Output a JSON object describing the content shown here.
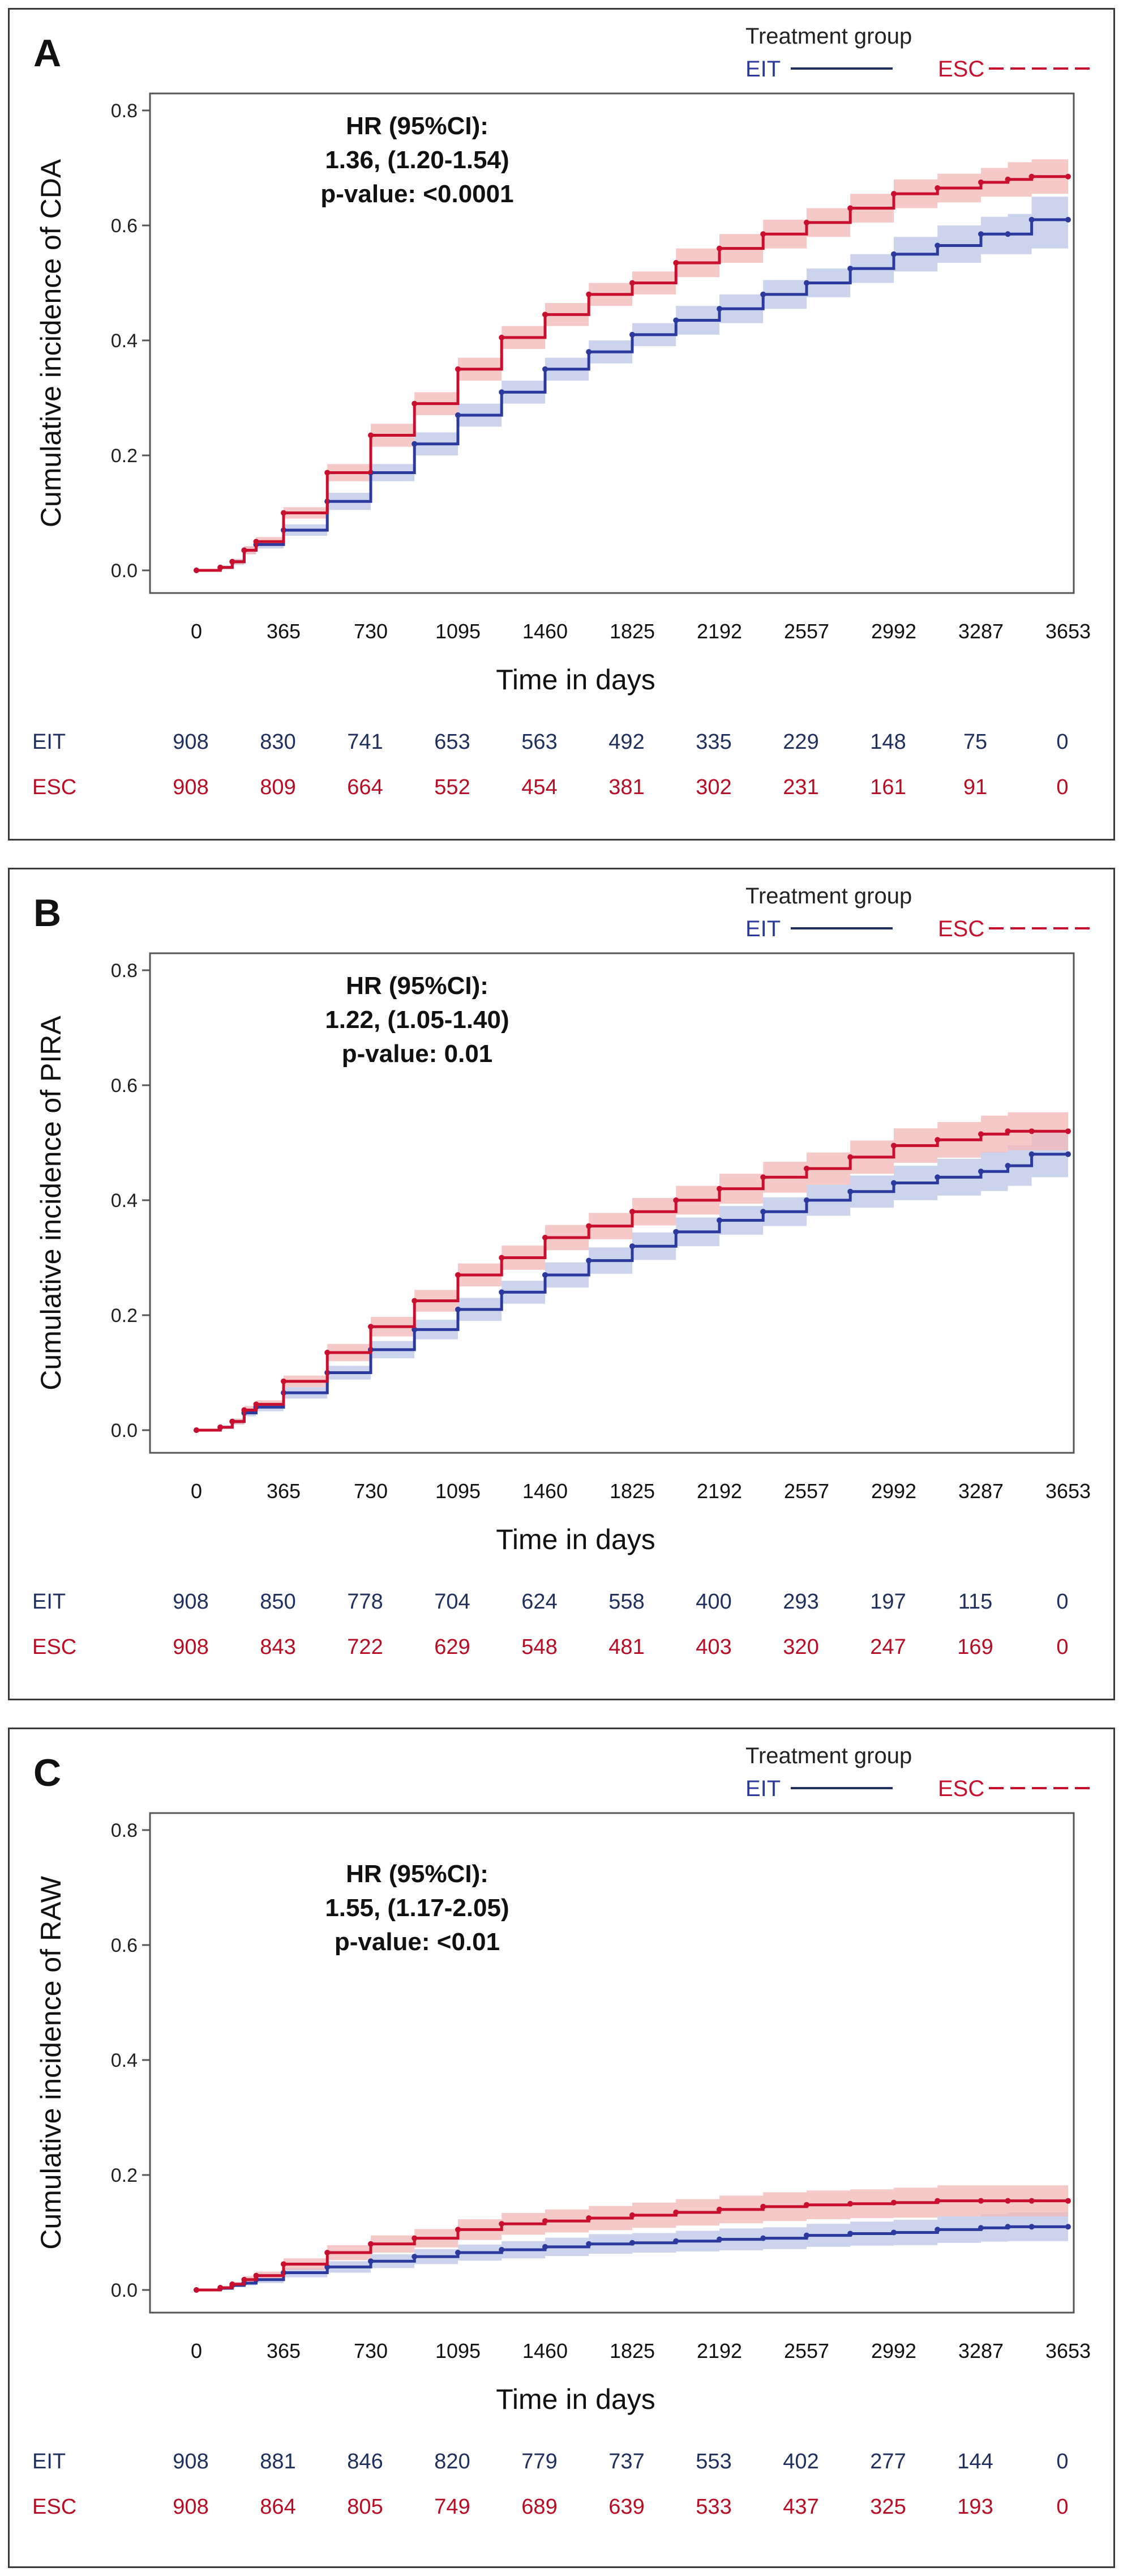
{
  "colors": {
    "eit": "#2b3a9c",
    "eit_band": "#b9c6e6",
    "esc": "#c8102e",
    "esc_band": "#f3b7b7",
    "eit_text": "#1f2f5e",
    "esc_text": "#b80c25"
  },
  "x_ticks": [
    "0",
    "365",
    "730",
    "1095",
    "1460",
    "1825",
    "2192",
    "2557",
    "2992",
    "3287",
    "3653"
  ],
  "y_ticks": [
    "0.0",
    "0.2",
    "0.4",
    "0.6",
    "0.8"
  ],
  "chart_data": [
    {
      "type": "line",
      "panel_letter": "A",
      "legend_title": "Treatment group",
      "ylabel": "Cumulative incidence of CDA",
      "xlabel": "Time in days",
      "ylim": [
        0,
        0.8
      ],
      "xlim": [
        0,
        3653
      ],
      "annotation": [
        "HR (95%CI):",
        "1.36, (1.20-1.54)",
        "p-value: <0.0001"
      ],
      "x": [
        0,
        100,
        150,
        200,
        250,
        365,
        548,
        730,
        913,
        1095,
        1278,
        1460,
        1643,
        1825,
        2009,
        2192,
        2375,
        2557,
        2775,
        2992,
        3140,
        3287,
        3400,
        3500,
        3653
      ],
      "series": [
        {
          "name": "EIT",
          "values": [
            0,
            0.005,
            0.015,
            0.035,
            0.045,
            0.07,
            0.12,
            0.17,
            0.22,
            0.27,
            0.31,
            0.35,
            0.38,
            0.41,
            0.435,
            0.455,
            0.48,
            0.5,
            0.525,
            0.55,
            0.565,
            0.585,
            0.585,
            0.61,
            0.61
          ],
          "ci_low": [
            0,
            0.003,
            0.01,
            0.028,
            0.038,
            0.06,
            0.105,
            0.155,
            0.2,
            0.25,
            0.29,
            0.33,
            0.36,
            0.39,
            0.41,
            0.43,
            0.455,
            0.475,
            0.5,
            0.52,
            0.535,
            0.55,
            0.55,
            0.56,
            0.56
          ],
          "ci_high": [
            0,
            0.008,
            0.02,
            0.042,
            0.052,
            0.08,
            0.135,
            0.185,
            0.24,
            0.29,
            0.33,
            0.37,
            0.4,
            0.43,
            0.46,
            0.48,
            0.505,
            0.525,
            0.55,
            0.58,
            0.6,
            0.615,
            0.62,
            0.65,
            0.65
          ]
        },
        {
          "name": "ESC",
          "values": [
            0,
            0.005,
            0.015,
            0.035,
            0.05,
            0.1,
            0.17,
            0.235,
            0.29,
            0.35,
            0.405,
            0.445,
            0.48,
            0.5,
            0.535,
            0.56,
            0.585,
            0.605,
            0.63,
            0.655,
            0.665,
            0.675,
            0.68,
            0.685,
            0.685
          ],
          "ci_low": [
            0,
            0.003,
            0.01,
            0.028,
            0.042,
            0.09,
            0.155,
            0.215,
            0.27,
            0.33,
            0.385,
            0.425,
            0.46,
            0.48,
            0.51,
            0.535,
            0.56,
            0.58,
            0.605,
            0.63,
            0.64,
            0.65,
            0.65,
            0.655,
            0.655
          ],
          "ci_high": [
            0,
            0.008,
            0.02,
            0.042,
            0.058,
            0.11,
            0.185,
            0.255,
            0.31,
            0.37,
            0.425,
            0.465,
            0.5,
            0.52,
            0.56,
            0.585,
            0.61,
            0.63,
            0.655,
            0.68,
            0.69,
            0.7,
            0.71,
            0.715,
            0.715
          ]
        }
      ],
      "at_risk": [
        {
          "name": "EIT",
          "values": [
            "908",
            "830",
            "741",
            "653",
            "563",
            "492",
            "335",
            "229",
            "148",
            "75",
            "0"
          ]
        },
        {
          "name": "ESC",
          "values": [
            "908",
            "809",
            "664",
            "552",
            "454",
            "381",
            "302",
            "231",
            "161",
            "91",
            "0"
          ]
        }
      ]
    },
    {
      "type": "line",
      "panel_letter": "B",
      "legend_title": "Treatment group",
      "ylabel": "Cumulative incidence of PIRA",
      "xlabel": "Time in days",
      "ylim": [
        0,
        0.8
      ],
      "xlim": [
        0,
        3653
      ],
      "annotation": [
        "HR (95%CI):",
        "1.22, (1.05-1.40)",
        "p-value: 0.01"
      ],
      "x": [
        0,
        100,
        150,
        200,
        250,
        365,
        548,
        730,
        913,
        1095,
        1278,
        1460,
        1643,
        1825,
        2009,
        2192,
        2375,
        2557,
        2775,
        2992,
        3140,
        3287,
        3400,
        3500,
        3653
      ],
      "series": [
        {
          "name": "EIT",
          "values": [
            0,
            0.005,
            0.015,
            0.03,
            0.04,
            0.065,
            0.1,
            0.14,
            0.175,
            0.21,
            0.24,
            0.27,
            0.295,
            0.32,
            0.345,
            0.365,
            0.38,
            0.4,
            0.415,
            0.43,
            0.44,
            0.45,
            0.46,
            0.48,
            0.48
          ],
          "ci_low": [
            0,
            0.003,
            0.01,
            0.024,
            0.033,
            0.055,
            0.088,
            0.125,
            0.158,
            0.19,
            0.22,
            0.248,
            0.272,
            0.296,
            0.32,
            0.34,
            0.355,
            0.373,
            0.387,
            0.4,
            0.408,
            0.416,
            0.425,
            0.44,
            0.44
          ],
          "ci_high": [
            0,
            0.007,
            0.02,
            0.036,
            0.047,
            0.075,
            0.112,
            0.155,
            0.192,
            0.23,
            0.26,
            0.292,
            0.318,
            0.344,
            0.37,
            0.39,
            0.405,
            0.427,
            0.443,
            0.46,
            0.472,
            0.484,
            0.495,
            0.52,
            0.52
          ]
        },
        {
          "name": "ESC",
          "values": [
            0,
            0.005,
            0.015,
            0.035,
            0.045,
            0.085,
            0.135,
            0.18,
            0.225,
            0.27,
            0.3,
            0.335,
            0.355,
            0.38,
            0.4,
            0.42,
            0.44,
            0.455,
            0.475,
            0.495,
            0.505,
            0.515,
            0.52,
            0.52,
            0.52
          ],
          "ci_low": [
            0,
            0.003,
            0.01,
            0.028,
            0.038,
            0.075,
            0.12,
            0.163,
            0.206,
            0.25,
            0.279,
            0.313,
            0.332,
            0.356,
            0.375,
            0.394,
            0.413,
            0.427,
            0.446,
            0.465,
            0.474,
            0.483,
            0.487,
            0.487,
            0.487
          ],
          "ci_high": [
            0,
            0.007,
            0.02,
            0.042,
            0.052,
            0.095,
            0.15,
            0.197,
            0.244,
            0.29,
            0.321,
            0.357,
            0.378,
            0.404,
            0.425,
            0.446,
            0.467,
            0.483,
            0.504,
            0.525,
            0.536,
            0.547,
            0.553,
            0.553,
            0.553
          ]
        }
      ],
      "at_risk": [
        {
          "name": "EIT",
          "values": [
            "908",
            "850",
            "778",
            "704",
            "624",
            "558",
            "400",
            "293",
            "197",
            "115",
            "0"
          ]
        },
        {
          "name": "ESC",
          "values": [
            "908",
            "843",
            "722",
            "629",
            "548",
            "481",
            "403",
            "320",
            "247",
            "169",
            "0"
          ]
        }
      ]
    },
    {
      "type": "line",
      "panel_letter": "C",
      "legend_title": "Treatment group",
      "ylabel": "Cumulative incidence of RAW",
      "xlabel": "Time in days",
      "ylim": [
        0,
        0.8
      ],
      "xlim": [
        0,
        3653
      ],
      "annotation": [
        "HR (95%CI):",
        "1.55, (1.17-2.05)",
        "p-value: <0.01"
      ],
      "x": [
        0,
        100,
        150,
        200,
        250,
        365,
        548,
        730,
        913,
        1095,
        1278,
        1460,
        1643,
        1825,
        2009,
        2192,
        2375,
        2557,
        2775,
        2992,
        3140,
        3287,
        3400,
        3500,
        3653
      ],
      "series": [
        {
          "name": "EIT",
          "values": [
            0,
            0.003,
            0.008,
            0.012,
            0.018,
            0.03,
            0.04,
            0.05,
            0.058,
            0.065,
            0.07,
            0.075,
            0.08,
            0.082,
            0.085,
            0.088,
            0.09,
            0.095,
            0.098,
            0.1,
            0.105,
            0.108,
            0.11,
            0.11,
            0.11
          ],
          "ci_low": [
            0,
            0.002,
            0.005,
            0.008,
            0.012,
            0.022,
            0.03,
            0.038,
            0.045,
            0.051,
            0.055,
            0.059,
            0.063,
            0.065,
            0.067,
            0.069,
            0.071,
            0.075,
            0.077,
            0.078,
            0.082,
            0.084,
            0.085,
            0.085,
            0.085
          ],
          "ci_high": [
            0,
            0.005,
            0.011,
            0.016,
            0.024,
            0.038,
            0.05,
            0.062,
            0.071,
            0.079,
            0.085,
            0.091,
            0.097,
            0.099,
            0.103,
            0.107,
            0.109,
            0.115,
            0.119,
            0.122,
            0.128,
            0.132,
            0.135,
            0.135,
            0.135
          ]
        },
        {
          "name": "ESC",
          "values": [
            0,
            0.004,
            0.01,
            0.018,
            0.025,
            0.045,
            0.065,
            0.08,
            0.09,
            0.105,
            0.115,
            0.12,
            0.125,
            0.13,
            0.135,
            0.14,
            0.145,
            0.148,
            0.15,
            0.152,
            0.155,
            0.155,
            0.155,
            0.155,
            0.155
          ],
          "ci_low": [
            0,
            0.002,
            0.006,
            0.012,
            0.018,
            0.035,
            0.052,
            0.065,
            0.074,
            0.087,
            0.096,
            0.1,
            0.104,
            0.108,
            0.112,
            0.116,
            0.12,
            0.123,
            0.125,
            0.126,
            0.128,
            0.128,
            0.128,
            0.128,
            0.128
          ],
          "ci_high": [
            0,
            0.006,
            0.014,
            0.024,
            0.032,
            0.055,
            0.078,
            0.095,
            0.106,
            0.123,
            0.134,
            0.14,
            0.146,
            0.152,
            0.158,
            0.164,
            0.17,
            0.173,
            0.175,
            0.178,
            0.182,
            0.182,
            0.182,
            0.182,
            0.182
          ]
        }
      ],
      "at_risk": [
        {
          "name": "EIT",
          "values": [
            "908",
            "881",
            "846",
            "820",
            "779",
            "737",
            "553",
            "402",
            "277",
            "144",
            "0"
          ]
        },
        {
          "name": "ESC",
          "values": [
            "908",
            "864",
            "805",
            "749",
            "689",
            "639",
            "533",
            "437",
            "325",
            "193",
            "0"
          ]
        }
      ]
    }
  ]
}
